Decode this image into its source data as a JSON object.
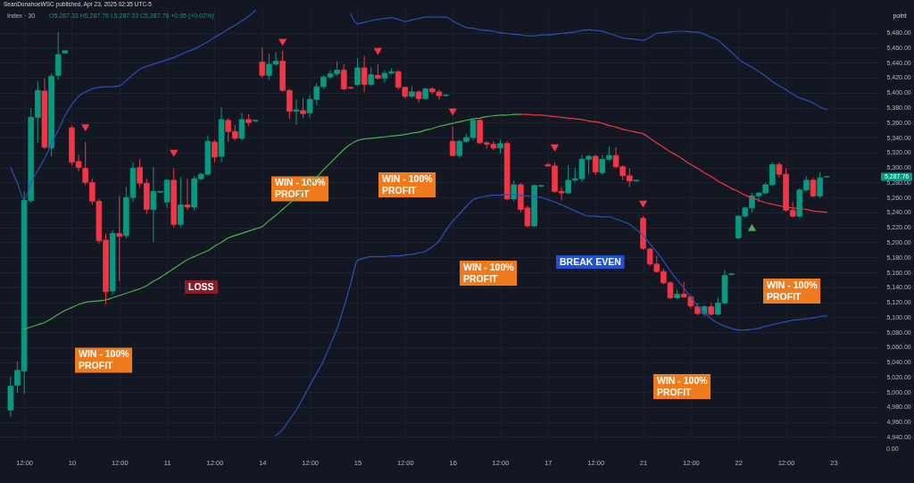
{
  "chart_data": {
    "type": "candlestick",
    "title": "Index · 30",
    "subtitle": "O5,287.33 H5,287.76 L5,287.33 C5,287.76 +0.95 (+0.02%)",
    "categories": [
      null,
      null,
      "12:00",
      null,
      null,
      null,
      null,
      null,
      null,
      "10",
      null,
      null,
      null,
      null,
      null,
      null,
      "12:00",
      null,
      null,
      null,
      null,
      null,
      null,
      "11",
      null,
      null,
      null,
      null,
      null,
      null,
      "12:00",
      null,
      null,
      null,
      null,
      null,
      null,
      "14",
      null,
      null,
      null,
      null,
      null,
      null,
      "12:00",
      null,
      null,
      null,
      null,
      null,
      null,
      "15",
      null,
      null,
      null,
      null,
      null,
      null,
      "12:00",
      null,
      null,
      null,
      null,
      null,
      null,
      "16",
      null,
      null,
      null,
      null,
      null,
      null,
      "12:00",
      null,
      null,
      null,
      null,
      null,
      null,
      "17",
      null,
      null,
      null,
      null,
      null,
      null,
      "12:00",
      null,
      null,
      null,
      null,
      null,
      null,
      "21",
      null,
      null,
      null,
      null,
      null,
      null,
      "12:00",
      null,
      null,
      null,
      null,
      null,
      null,
      "22",
      null,
      null,
      null,
      null,
      null,
      null,
      "12:00",
      null,
      null,
      null,
      null,
      null,
      null,
      "23",
      null,
      null,
      null,
      null,
      null,
      null
    ],
    "ohlc": [
      [
        4976,
        5020,
        4967,
        5008
      ],
      [
        5009,
        5041,
        4999,
        5029
      ],
      [
        5028,
        5268,
        4998,
        5256
      ],
      [
        5256,
        5379,
        5253,
        5367
      ],
      [
        5367,
        5415,
        5333,
        5403
      ],
      [
        5402,
        5419,
        5325,
        5327
      ],
      [
        5326,
        5426,
        5315,
        5422
      ],
      [
        5423,
        5481,
        5417,
        5451
      ],
      [
        5453,
        5456,
        5452,
        5456
      ],
      [
        5353,
        5356,
        5303,
        5307
      ],
      [
        5308,
        5317,
        5295,
        5300
      ],
      [
        5299,
        5334,
        5276,
        5280
      ],
      [
        5280,
        5285,
        5250,
        5255
      ],
      [
        5255,
        5258,
        5198,
        5202
      ],
      [
        5203,
        5212,
        5117,
        5134
      ],
      [
        5135,
        5216,
        5130,
        5212
      ],
      [
        5212,
        5262,
        5148,
        5208
      ],
      [
        5209,
        5274,
        5205,
        5260
      ],
      [
        5260,
        5307,
        5254,
        5299
      ],
      [
        5300,
        5311,
        5273,
        5279
      ],
      [
        5279,
        5285,
        5238,
        5244
      ],
      [
        5244,
        5301,
        5200,
        5268
      ],
      [
        5267,
        5268,
        5266,
        5268
      ],
      [
        5254,
        5285,
        5246,
        5283
      ],
      [
        5283,
        5299,
        5220,
        5224
      ],
      [
        5224,
        5287,
        5220,
        5250
      ],
      [
        5250,
        5285,
        5243,
        5247
      ],
      [
        5247,
        5289,
        5242,
        5285
      ],
      [
        5285,
        5293,
        5283,
        5291
      ],
      [
        5291,
        5343,
        5289,
        5335
      ],
      [
        5334,
        5337,
        5307,
        5314
      ],
      [
        5315,
        5381,
        5307,
        5364
      ],
      [
        5363,
        5366,
        5334,
        5348
      ],
      [
        5348,
        5357,
        5336,
        5339
      ],
      [
        5339,
        5373,
        5336,
        5364
      ],
      [
        5364,
        5371,
        5355,
        5360
      ],
      [
        5362,
        5363,
        5361,
        5363
      ],
      [
        5441,
        5460,
        5420,
        5423
      ],
      [
        5423,
        5452,
        5417,
        5438
      ],
      [
        5438,
        5454,
        5436,
        5442
      ],
      [
        5442,
        5456,
        5401,
        5403
      ],
      [
        5403,
        5405,
        5365,
        5375
      ],
      [
        5375,
        5391,
        5357,
        5377
      ],
      [
        5376,
        5393,
        5366,
        5372
      ],
      [
        5373,
        5397,
        5367,
        5391
      ],
      [
        5391,
        5413,
        5383,
        5408
      ],
      [
        5408,
        5423,
        5405,
        5421
      ],
      [
        5421,
        5430,
        5419,
        5425
      ],
      [
        5425,
        5442,
        5422,
        5430
      ],
      [
        5430,
        5438,
        5403,
        5405
      ],
      [
        5407,
        5407,
        5405,
        5406
      ],
      [
        5411,
        5446,
        5409,
        5433
      ],
      [
        5433,
        5449,
        5401,
        5411
      ],
      [
        5411,
        5434,
        5409,
        5424
      ],
      [
        5423,
        5438,
        5418,
        5419
      ],
      [
        5419,
        5430,
        5413,
        5426
      ],
      [
        5426,
        5433,
        5425,
        5428
      ],
      [
        5428,
        5430,
        5404,
        5407
      ],
      [
        5407,
        5408,
        5392,
        5395
      ],
      [
        5395,
        5409,
        5393,
        5401
      ],
      [
        5401,
        5403,
        5387,
        5392
      ],
      [
        5392,
        5406,
        5390,
        5405
      ],
      [
        5405,
        5407,
        5398,
        5401
      ],
      [
        5401,
        5404,
        5391,
        5396
      ],
      [
        5396,
        5397,
        5395,
        5397
      ],
      [
        5335,
        5355,
        5315,
        5316
      ],
      [
        5316,
        5337,
        5313,
        5335
      ],
      [
        5335,
        5345,
        5333,
        5340
      ],
      [
        5340,
        5365,
        5337,
        5363
      ],
      [
        5363,
        5366,
        5331,
        5333
      ],
      [
        5333,
        5335,
        5325,
        5331
      ],
      [
        5331,
        5335,
        5323,
        5326
      ],
      [
        5326,
        5337,
        5319,
        5332
      ],
      [
        5332,
        5335,
        5256,
        5258
      ],
      [
        5258,
        5283,
        5255,
        5277
      ],
      [
        5277,
        5279,
        5240,
        5244
      ],
      [
        5246,
        5249,
        5220,
        5222
      ],
      [
        5222,
        5277,
        5221,
        5276
      ],
      [
        5275,
        5276,
        5274,
        5276
      ],
      [
        5304,
        5306,
        5301,
        5302
      ],
      [
        5302,
        5307,
        5266,
        5268
      ],
      [
        5268,
        5274,
        5256,
        5266
      ],
      [
        5266,
        5303,
        5264,
        5283
      ],
      [
        5283,
        5300,
        5281,
        5285
      ],
      [
        5285,
        5317,
        5281,
        5311
      ],
      [
        5311,
        5317,
        5291,
        5315
      ],
      [
        5315,
        5317,
        5290,
        5294
      ],
      [
        5293,
        5317,
        5290,
        5311
      ],
      [
        5311,
        5328,
        5309,
        5316
      ],
      [
        5316,
        5327,
        5299,
        5301
      ],
      [
        5301,
        5303,
        5283,
        5289
      ],
      [
        5289,
        5299,
        5274,
        5282
      ],
      [
        5282,
        5283,
        5281,
        5283
      ],
      [
        5232,
        5235,
        5190,
        5192
      ],
      [
        5191,
        5193,
        5168,
        5171
      ],
      [
        5171,
        5182,
        5160,
        5161
      ],
      [
        5161,
        5165,
        5144,
        5146
      ],
      [
        5146,
        5148,
        5124,
        5126
      ],
      [
        5126,
        5137,
        5124,
        5131
      ],
      [
        5131,
        5147,
        5126,
        5127
      ],
      [
        5127,
        5129,
        5112,
        5115
      ],
      [
        5114,
        5119,
        5103,
        5105
      ],
      [
        5105,
        5116,
        5101,
        5114
      ],
      [
        5114,
        5119,
        5102,
        5104
      ],
      [
        5104,
        5127,
        5102,
        5119
      ],
      [
        5119,
        5163,
        5117,
        5156
      ],
      [
        5157,
        5158,
        5156,
        5158
      ],
      [
        5206,
        5236,
        5204,
        5235
      ],
      [
        5235,
        5247,
        5233,
        5246
      ],
      [
        5246,
        5266,
        5240,
        5262
      ],
      [
        5262,
        5267,
        5254,
        5266
      ],
      [
        5266,
        5280,
        5264,
        5277
      ],
      [
        5277,
        5307,
        5275,
        5304
      ],
      [
        5304,
        5307,
        5286,
        5291
      ],
      [
        5291,
        5299,
        5241,
        5243
      ],
      [
        5243,
        5254,
        5233,
        5235
      ],
      [
        5235,
        5272,
        5233,
        5270
      ],
      [
        5270,
        5288,
        5268,
        5283
      ],
      [
        5283,
        5286,
        5260,
        5262
      ],
      [
        5262,
        5294,
        5259,
        5286
      ],
      [
        5287.33,
        5287.76,
        5287.33,
        5287.76
      ],
      null,
      null,
      null,
      null,
      null,
      null,
      null
    ],
    "colors": [
      "#089981",
      "#089981",
      "#089981",
      "#089981",
      "#089981",
      "#f23645",
      "#089981",
      "#089981",
      "#089981",
      "#f23645",
      "#f23645",
      "#f23645",
      "#f23645",
      "#f23645",
      "#f23645",
      "#089981",
      "#f23645",
      "#089981",
      "#089981",
      "#f23645",
      "#f23645",
      "#089981",
      "#089981",
      "#089981",
      "#f23645",
      "#089981",
      "#f23645",
      "#089981",
      "#089981",
      "#089981",
      "#f23645",
      "#089981",
      "#f23645",
      "#f23645",
      "#089981",
      "#f23645",
      "#089981",
      "#f23645",
      "#089981",
      "#089981",
      "#f23645",
      "#f23645",
      "#089981",
      "#f23645",
      "#089981",
      "#089981",
      "#089981",
      "#089981",
      "#089981",
      "#f23645",
      "#f23645",
      "#089981",
      "#f23645",
      "#089981",
      "#f23645",
      "#089981",
      "#089981",
      "#f23645",
      "#f23645",
      "#089981",
      "#f23645",
      "#089981",
      "#f23645",
      "#f23645",
      "#089981",
      "#f23645",
      "#089981",
      "#089981",
      "#089981",
      "#f23645",
      "#f23645",
      "#f23645",
      "#089981",
      "#f23645",
      "#089981",
      "#f23645",
      "#f23645",
      "#089981",
      "#089981",
      "#f23645",
      "#f23645",
      "#f23645",
      "#089981",
      "#089981",
      "#089981",
      "#089981",
      "#f23645",
      "#089981",
      "#089981",
      "#f23645",
      "#f23645",
      "#f23645",
      "#089981",
      "#f23645",
      "#f23645",
      "#f23645",
      "#f23645",
      "#f23645",
      "#089981",
      "#f23645",
      "#f23645",
      "#f23645",
      "#089981",
      "#f23645",
      "#089981",
      "#089981",
      "#089981",
      "#089981",
      "#089981",
      "#089981",
      "#089981",
      "#089981",
      "#089981",
      "#f23645",
      "#f23645",
      "#f23645",
      "#089981",
      "#089981",
      "#f23645",
      "#089981",
      "#089981",
      null,
      null,
      null,
      null,
      null,
      null,
      null
    ],
    "ylim": [
      4937,
      5513
    ],
    "yticks": [
      {
        "value": 4940,
        "label": "4,940.00"
      },
      {
        "value": 4960,
        "label": "4,960.00"
      },
      {
        "value": 4980,
        "label": "4,980.00"
      },
      {
        "value": 5000,
        "label": "5,000.00"
      },
      {
        "value": 5020,
        "label": "5,020.00"
      },
      {
        "value": 5040,
        "label": "5,040.00"
      },
      {
        "value": 5060,
        "label": "5,060.00"
      },
      {
        "value": 5080,
        "label": "5,080.00"
      },
      {
        "value": 5100,
        "label": "5,100.00"
      },
      {
        "value": 5120,
        "label": "5,120.00"
      },
      {
        "value": 5140,
        "label": "5,140.00"
      },
      {
        "value": 5160,
        "label": "5,160.00"
      },
      {
        "value": 5180,
        "label": "5,180.00"
      },
      {
        "value": 5200,
        "label": "5,200.00"
      },
      {
        "value": 5220,
        "label": "5,220.00"
      },
      {
        "value": 5240,
        "label": "5,240.00"
      },
      {
        "value": 5260,
        "label": "5,260.00"
      },
      {
        "value": 5280,
        "label": "5,280.00"
      },
      {
        "value": 5300,
        "label": "5,300.00"
      },
      {
        "value": 5320,
        "label": "5,320.00"
      },
      {
        "value": 5340,
        "label": "5,340.00"
      },
      {
        "value": 5360,
        "label": "5,360.00"
      },
      {
        "value": 5380,
        "label": "5,380.00"
      },
      {
        "value": 5400,
        "label": "5,400.00"
      },
      {
        "value": 5420,
        "label": "5,420.00"
      },
      {
        "value": 5440,
        "label": "5,440.00"
      },
      {
        "value": 5460,
        "label": "5,460.00"
      },
      {
        "value": 5480,
        "label": "5,480.00"
      }
    ],
    "grid": true,
    "series": [
      {
        "type": "line",
        "color": "#2d4fb8",
        "values": [
          5300,
          5279,
          5257,
          5280,
          5296,
          5312,
          5331,
          5350,
          5369,
          5384,
          5395,
          5401,
          5405,
          5407,
          5408,
          5408,
          5409,
          5416,
          5424,
          5431,
          5435,
          5438,
          5441,
          5444,
          5447,
          5451,
          5455,
          5458,
          5463,
          5468,
          5474,
          5479,
          5485,
          5490,
          5496,
          5502,
          5510,
          null,
          null,
          null,
          null,
          null,
          null,
          null,
          null,
          null,
          null,
          null,
          null,
          null,
          5505,
          5492,
          5494,
          5496,
          5498,
          5499,
          5500,
          5498,
          5495,
          5497,
          5499,
          5501,
          5501,
          5501,
          5501,
          5496,
          5491,
          5487,
          5486,
          5484,
          5483,
          5482,
          5480,
          5479,
          5478,
          5477,
          5476,
          5476,
          5477,
          5477,
          5478,
          5479,
          5480,
          5481,
          5483,
          5484,
          5483,
          5482,
          5479,
          5476,
          5473,
          5472,
          5471,
          5470,
          5474,
          5479,
          5480,
          5481,
          5482,
          5482,
          5481,
          5481,
          5478,
          5474,
          5470,
          5462,
          5454,
          5445,
          5439,
          5434,
          5428,
          5422,
          5415,
          5409,
          5404,
          5398,
          5393,
          5390,
          5386,
          5381,
          5377,
          null,
          null,
          null,
          null,
          null,
          null,
          null
        ]
      },
      {
        "type": "line",
        "color": "#4caf50",
        "values": [
          null,
          null,
          5084,
          5087,
          5090,
          5093,
          5098,
          5104,
          5109,
          5113,
          5117,
          5120,
          5121,
          5122,
          5123,
          5126,
          5129,
          5132,
          5135,
          5138,
          5142,
          5148,
          5153,
          5159,
          5165,
          5171,
          5177,
          5181,
          5185,
          5189,
          5195,
          5200,
          5206,
          5209,
          5212,
          5215,
          5218,
          5221,
          5229,
          5236,
          5244,
          5252,
          5260,
          5268,
          5278,
          5287,
          5297,
          5306,
          5315,
          5324,
          5331,
          5336,
          5338,
          5339,
          5340,
          5341,
          5342,
          5343,
          5344,
          5346,
          5347,
          5350,
          5352,
          5355,
          5357,
          5359,
          5361,
          5363,
          5365,
          5366,
          5368,
          5369,
          5370,
          5370,
          5371,
          5371,
          null,
          null,
          null,
          null,
          null,
          null,
          null,
          null,
          null,
          null,
          null,
          null,
          null,
          null,
          null,
          null,
          null,
          null,
          null,
          null,
          null,
          null,
          null,
          null,
          null,
          null,
          null,
          null,
          null,
          null,
          null,
          null,
          null,
          null,
          null,
          null,
          null,
          null,
          null,
          null,
          null,
          null,
          null,
          null,
          null,
          null,
          null,
          null,
          null,
          null,
          null,
          null
        ]
      },
      {
        "type": "line",
        "color": "#f23645",
        "values": [
          null,
          null,
          null,
          null,
          null,
          null,
          null,
          null,
          null,
          null,
          null,
          null,
          null,
          null,
          null,
          null,
          null,
          null,
          null,
          null,
          null,
          null,
          null,
          null,
          null,
          null,
          null,
          null,
          null,
          null,
          null,
          null,
          null,
          null,
          null,
          null,
          null,
          null,
          null,
          null,
          null,
          null,
          null,
          null,
          null,
          null,
          null,
          null,
          null,
          null,
          null,
          null,
          null,
          null,
          null,
          null,
          null,
          null,
          null,
          null,
          null,
          null,
          null,
          null,
          null,
          null,
          null,
          null,
          null,
          null,
          null,
          null,
          null,
          null,
          null,
          5371,
          5371,
          5370,
          5370,
          5369,
          5368,
          5367,
          5366,
          5365,
          5364,
          5362,
          5361,
          5359,
          5356,
          5354,
          5351,
          5349,
          5347,
          5345,
          5339,
          5333,
          5327,
          5321,
          5316,
          5310,
          5304,
          5299,
          5293,
          5288,
          5282,
          5277,
          5272,
          5268,
          5263,
          5260,
          5256,
          5253,
          5251,
          5249,
          5247,
          5246,
          5245,
          5244,
          5242,
          5241,
          5240,
          null,
          null,
          null,
          null,
          null,
          null,
          null
        ]
      },
      {
        "type": "line",
        "color": "#2d4fb8",
        "values": [
          null,
          null,
          null,
          null,
          null,
          null,
          null,
          null,
          null,
          null,
          null,
          null,
          null,
          null,
          null,
          null,
          null,
          null,
          null,
          null,
          null,
          null,
          null,
          null,
          null,
          null,
          null,
          null,
          null,
          null,
          null,
          null,
          null,
          null,
          null,
          null,
          null,
          null,
          null,
          4942,
          4950,
          4963,
          4976,
          4992,
          5009,
          5025,
          5042,
          5063,
          5085,
          5113,
          5145,
          5176,
          5179,
          5181,
          5181,
          5181,
          5182,
          5182,
          5183,
          5184,
          5186,
          5188,
          5194,
          5202,
          5216,
          5228,
          5238,
          5248,
          5257,
          5260,
          5262,
          5263,
          5263,
          5264,
          5264,
          5263,
          5262,
          5261,
          5260,
          5257,
          5254,
          5250,
          5246,
          5242,
          5238,
          5235,
          5235,
          5234,
          5234,
          5231,
          5228,
          5224,
          5217,
          5209,
          5198,
          5187,
          5175,
          5162,
          5150,
          5139,
          5127,
          5115,
          5106,
          5098,
          5092,
          5088,
          5085,
          5083,
          5083,
          5084,
          5085,
          5088,
          5090,
          5092,
          5094,
          5096,
          5097,
          5098,
          5099,
          5101,
          5102,
          null,
          null,
          null,
          null,
          null,
          null,
          null
        ]
      },
      {
        "type": "scatter",
        "color": "#f23645",
        "marker": "triangle-down",
        "values": [
          null,
          null,
          null,
          null,
          null,
          null,
          null,
          null,
          null,
          null,
          null,
          5353,
          null,
          null,
          null,
          null,
          null,
          null,
          null,
          null,
          null,
          null,
          null,
          null,
          5319,
          null,
          null,
          null,
          null,
          null,
          null,
          null,
          null,
          null,
          null,
          null,
          null,
          null,
          null,
          null,
          5467,
          null,
          null,
          null,
          null,
          null,
          null,
          null,
          null,
          null,
          null,
          null,
          null,
          null,
          5455,
          null,
          null,
          null,
          null,
          null,
          null,
          null,
          null,
          null,
          null,
          5374,
          null,
          null,
          null,
          null,
          null,
          null,
          null,
          null,
          null,
          null,
          null,
          null,
          null,
          null,
          5326,
          null,
          null,
          null,
          null,
          null,
          null,
          null,
          null,
          null,
          null,
          null,
          null,
          5251,
          null,
          null,
          null,
          null,
          null,
          null,
          null,
          null,
          null,
          null,
          null,
          null,
          null,
          null,
          null,
          null,
          null,
          null,
          null,
          null,
          null,
          null,
          null,
          null,
          null,
          null,
          null,
          null,
          null,
          null,
          null,
          null,
          null,
          null
        ]
      },
      {
        "type": "scatter",
        "color": "#4caf50",
        "marker": "triangle",
        "values": [
          null,
          null,
          null,
          null,
          null,
          null,
          null,
          null,
          null,
          null,
          null,
          null,
          null,
          null,
          null,
          null,
          null,
          null,
          null,
          null,
          null,
          null,
          null,
          null,
          null,
          null,
          null,
          null,
          null,
          null,
          null,
          null,
          null,
          null,
          null,
          null,
          null,
          null,
          null,
          null,
          null,
          null,
          null,
          null,
          null,
          null,
          null,
          null,
          null,
          null,
          null,
          null,
          null,
          null,
          null,
          null,
          null,
          null,
          null,
          null,
          null,
          null,
          null,
          null,
          null,
          null,
          null,
          null,
          null,
          null,
          null,
          null,
          null,
          null,
          null,
          null,
          null,
          null,
          null,
          null,
          null,
          null,
          null,
          null,
          null,
          null,
          null,
          null,
          null,
          null,
          null,
          null,
          null,
          null,
          null,
          null,
          null,
          null,
          null,
          null,
          null,
          null,
          null,
          null,
          null,
          null,
          null,
          null,
          null,
          5220,
          null,
          null,
          null,
          null,
          null,
          null,
          null,
          null,
          null,
          null,
          null,
          null,
          null,
          null,
          null,
          null,
          null,
          null
        ]
      }
    ],
    "annotations": [
      "SeanDonahoeWSC published, Apr 23, 2025 02:35 UTC-5",
      "point",
      "0.00",
      "WIN - 100%\nPROFIT",
      "LOSS",
      "WIN - 100%\nPROFIT",
      "WIN - 100%\nPROFIT",
      "WIN - 100%\nPROFIT",
      "BREAK EVEN",
      "WIN - 100%\nPROFIT",
      "WIN - 100%\nPROFIT",
      "5,287.76"
    ]
  }
}
